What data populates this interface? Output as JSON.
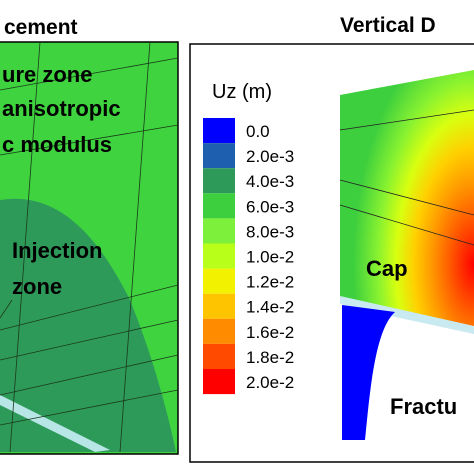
{
  "left_panel": {
    "title": "cement",
    "labels": [
      "ure zone",
      "anisotropic",
      "c modulus",
      "Injection",
      "zone"
    ]
  },
  "right_panel": {
    "title": "Vertical D",
    "legend": {
      "title": "Uz (m)",
      "entries": [
        {
          "label": "0.0",
          "color": "#0000ff"
        },
        {
          "label": "2.0e-3",
          "color": "#1f5fb0"
        },
        {
          "label": "4.0e-3",
          "color": "#2e9a5a"
        },
        {
          "label": "6.0e-3",
          "color": "#3ecf3e"
        },
        {
          "label": "8.0e-3",
          "color": "#7cf03a"
        },
        {
          "label": "1.0e-2",
          "color": "#b8ff1a"
        },
        {
          "label": "1.2e-2",
          "color": "#f2f200"
        },
        {
          "label": "1.4e-2",
          "color": "#ffc400"
        },
        {
          "label": "1.6e-2",
          "color": "#ff8c00"
        },
        {
          "label": "1.8e-2",
          "color": "#ff4a00"
        },
        {
          "label": "2.0e-2",
          "color": "#ff0000"
        }
      ]
    },
    "labels": [
      "Cap",
      "Fractu"
    ]
  }
}
